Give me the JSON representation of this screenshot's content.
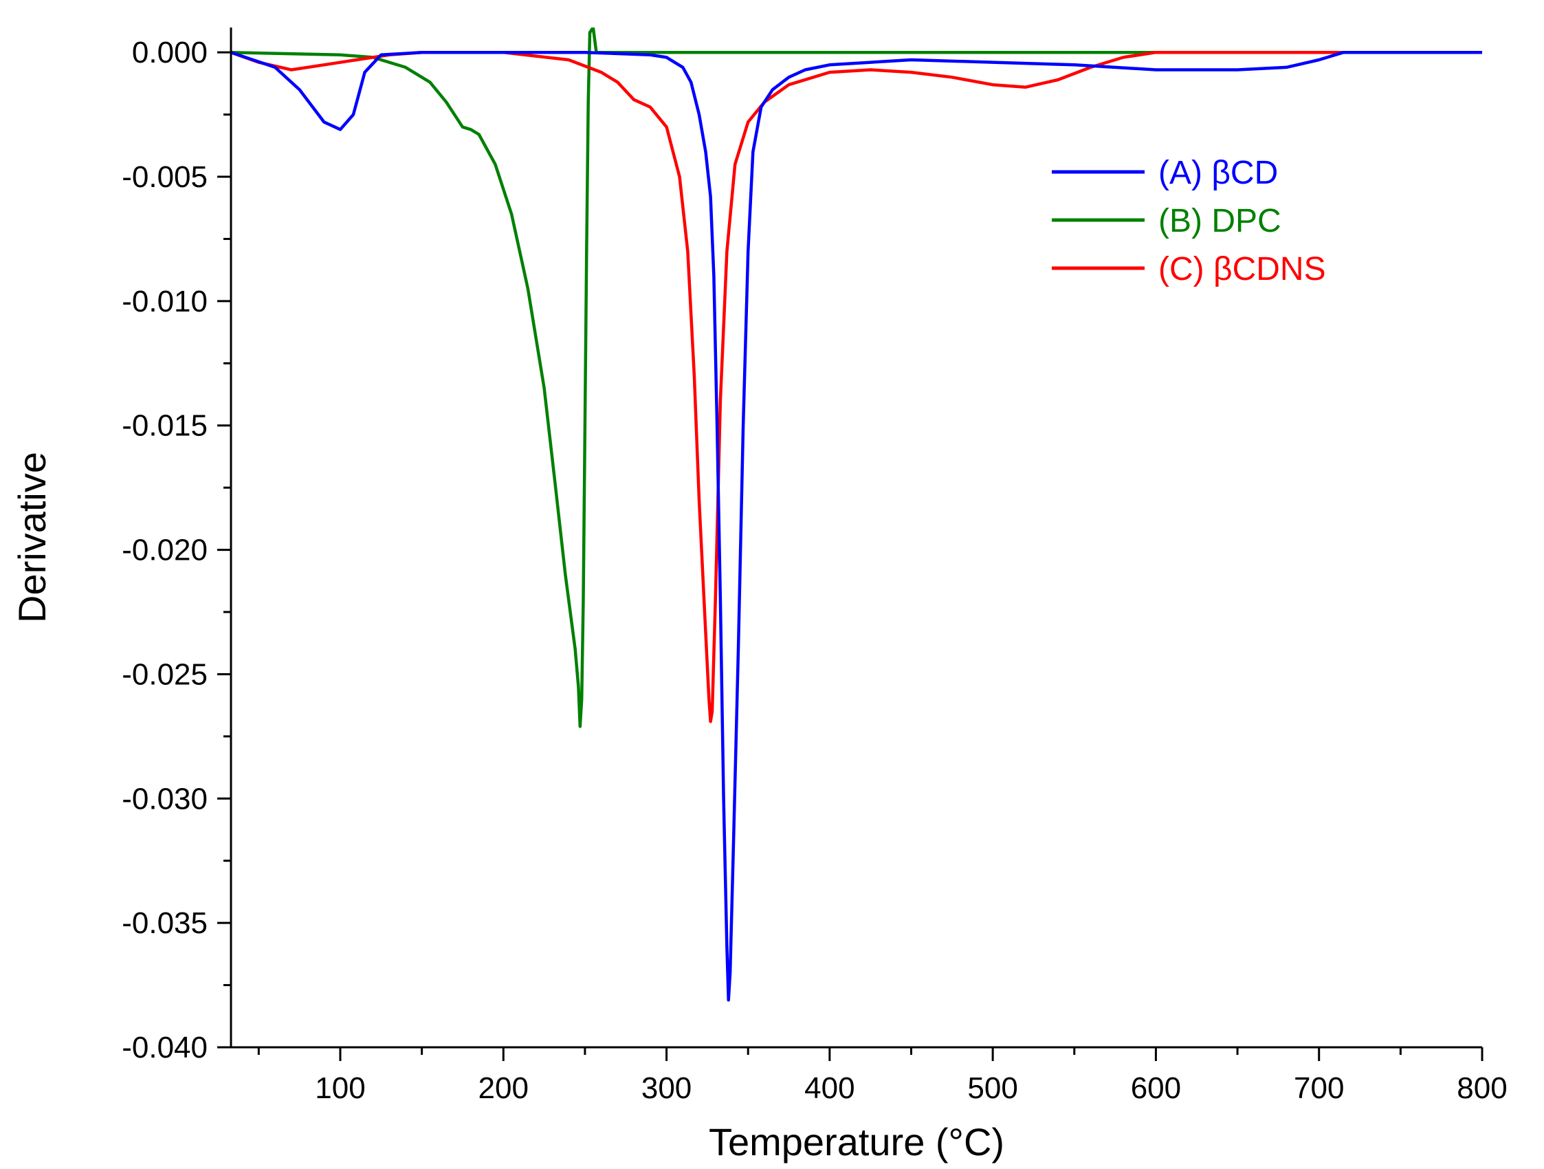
{
  "chart_data": {
    "type": "line",
    "title": "",
    "xlabel": "Temperature (°C)",
    "ylabel": "Derivative",
    "xlim": [
      33,
      800
    ],
    "ylim": [
      -0.04,
      0.001
    ],
    "x_ticks": [
      100,
      200,
      300,
      400,
      500,
      600,
      700,
      800
    ],
    "x_tick_labels": [
      "100",
      "200",
      "300",
      "400",
      "500",
      "600",
      "700",
      "800"
    ],
    "y_ticks": [
      0.0,
      -0.005,
      -0.01,
      -0.015,
      -0.02,
      -0.025,
      -0.03,
      -0.035,
      -0.04
    ],
    "y_tick_labels": [
      "0.000",
      "-0.005",
      "-0.010",
      "-0.015",
      "-0.020",
      "-0.025",
      "-0.030",
      "-0.035",
      "-0.040"
    ],
    "grid": false,
    "legend_position": "top-right",
    "series": [
      {
        "name": "(A) βCD",
        "color": "#0000ff",
        "points": [
          [
            33,
            0
          ],
          [
            60,
            -0.0006
          ],
          [
            75,
            -0.0015
          ],
          [
            90,
            -0.0028
          ],
          [
            100,
            -0.0031
          ],
          [
            108,
            -0.0025
          ],
          [
            115,
            -0.0008
          ],
          [
            125,
            -0.0001
          ],
          [
            150,
            0
          ],
          [
            250,
            0
          ],
          [
            290,
            -0.0001
          ],
          [
            300,
            -0.0002
          ],
          [
            310,
            -0.0006
          ],
          [
            315,
            -0.0012
          ],
          [
            320,
            -0.0025
          ],
          [
            324,
            -0.004
          ],
          [
            327,
            -0.0058
          ],
          [
            329,
            -0.009
          ],
          [
            331,
            -0.015
          ],
          [
            333,
            -0.022
          ],
          [
            335,
            -0.03
          ],
          [
            337,
            -0.036
          ],
          [
            338,
            -0.0381
          ],
          [
            339,
            -0.037
          ],
          [
            341,
            -0.032
          ],
          [
            344,
            -0.024
          ],
          [
            347,
            -0.015
          ],
          [
            350,
            -0.008
          ],
          [
            353,
            -0.004
          ],
          [
            358,
            -0.0022
          ],
          [
            365,
            -0.0015
          ],
          [
            375,
            -0.001
          ],
          [
            385,
            -0.0007
          ],
          [
            400,
            -0.0005
          ],
          [
            450,
            -0.0003
          ],
          [
            500,
            -0.0004
          ],
          [
            550,
            -0.0005
          ],
          [
            600,
            -0.0007
          ],
          [
            650,
            -0.0007
          ],
          [
            680,
            -0.0006
          ],
          [
            700,
            -0.0003
          ],
          [
            715,
            0
          ],
          [
            800,
            0
          ]
        ]
      },
      {
        "name": "(B) DPC",
        "color": "#008000",
        "points": [
          [
            33,
            0
          ],
          [
            100,
            -0.0001
          ],
          [
            120,
            -0.0002
          ],
          [
            140,
            -0.0006
          ],
          [
            155,
            -0.0012
          ],
          [
            165,
            -0.002
          ],
          [
            175,
            -0.003
          ],
          [
            180,
            -0.0031
          ],
          [
            185,
            -0.0033
          ],
          [
            195,
            -0.0045
          ],
          [
            205,
            -0.0065
          ],
          [
            215,
            -0.0095
          ],
          [
            225,
            -0.0135
          ],
          [
            232,
            -0.0175
          ],
          [
            238,
            -0.021
          ],
          [
            244,
            -0.024
          ],
          [
            246,
            -0.0255
          ],
          [
            247,
            -0.0271
          ],
          [
            248,
            -0.026
          ],
          [
            249,
            -0.022
          ],
          [
            250,
            -0.015
          ],
          [
            251,
            -0.008
          ],
          [
            252,
            -0.002
          ],
          [
            253,
            0.0008
          ],
          [
            255,
            0.001
          ],
          [
            257,
            0
          ],
          [
            270,
            0
          ],
          [
            400,
            0
          ],
          [
            600,
            0
          ],
          [
            800,
            0
          ]
        ]
      },
      {
        "name": "(C) βCDNS",
        "color": "#ff0000",
        "points": [
          [
            33,
            0
          ],
          [
            50,
            -0.0004
          ],
          [
            70,
            -0.0007
          ],
          [
            90,
            -0.0005
          ],
          [
            110,
            -0.0003
          ],
          [
            130,
            -0.0001
          ],
          [
            150,
            0
          ],
          [
            200,
            0
          ],
          [
            240,
            -0.0003
          ],
          [
            260,
            -0.0008
          ],
          [
            270,
            -0.0012
          ],
          [
            280,
            -0.0019
          ],
          [
            290,
            -0.0022
          ],
          [
            300,
            -0.003
          ],
          [
            308,
            -0.005
          ],
          [
            313,
            -0.008
          ],
          [
            317,
            -0.013
          ],
          [
            320,
            -0.018
          ],
          [
            323,
            -0.022
          ],
          [
            326,
            -0.026
          ],
          [
            327,
            -0.0269
          ],
          [
            328,
            -0.0265
          ],
          [
            330,
            -0.022
          ],
          [
            333,
            -0.014
          ],
          [
            337,
            -0.008
          ],
          [
            342,
            -0.0045
          ],
          [
            350,
            -0.0028
          ],
          [
            360,
            -0.002
          ],
          [
            375,
            -0.0013
          ],
          [
            400,
            -0.0008
          ],
          [
            425,
            -0.0007
          ],
          [
            450,
            -0.0008
          ],
          [
            475,
            -0.001
          ],
          [
            500,
            -0.0013
          ],
          [
            520,
            -0.0014
          ],
          [
            540,
            -0.0011
          ],
          [
            560,
            -0.0006
          ],
          [
            580,
            -0.0002
          ],
          [
            600,
            0
          ],
          [
            800,
            0
          ]
        ]
      }
    ]
  }
}
